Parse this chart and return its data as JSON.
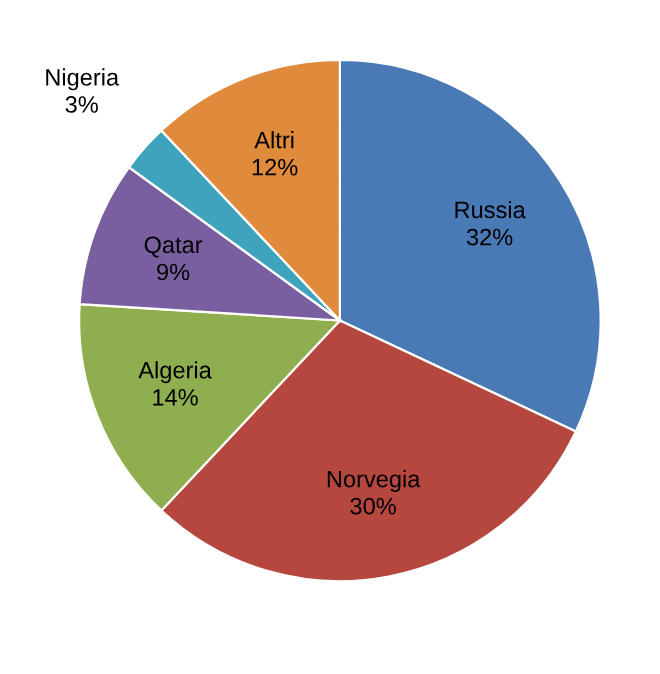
{
  "chart_data": {
    "type": "pie",
    "categories": [
      "Russia",
      "Norvegia",
      "Algeria",
      "Qatar",
      "Nigeria",
      "Altri"
    ],
    "values": [
      32,
      30,
      14,
      9,
      3,
      12
    ],
    "value_labels": [
      "32%",
      "30%",
      "14%",
      "9%",
      "3%",
      "12%"
    ],
    "colors": [
      "#4a7ab5",
      "#b5473f",
      "#8fae4f",
      "#7a5fa0",
      "#3fa3bd",
      "#e08a3c"
    ],
    "legend": false
  }
}
